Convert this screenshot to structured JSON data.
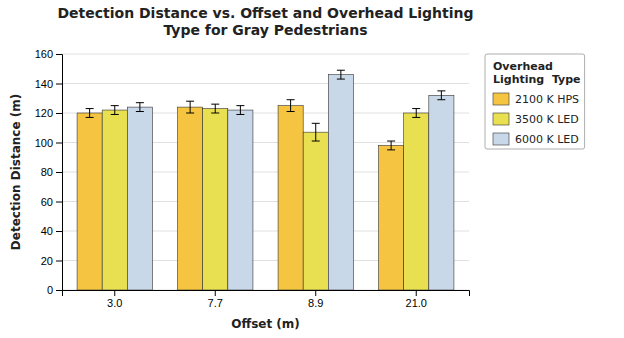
{
  "chart_data": {
    "type": "bar",
    "title": "Detection Distance vs. Offset and Overhead Lighting\nType for Gray Pedestrians",
    "x_label": "Offset (m)",
    "y_label": "Detection Distance (m)",
    "categories": [
      "3.0",
      "7.7",
      "8.9",
      "21.0"
    ],
    "series": [
      {
        "name": "2100 K HPS",
        "color": "#F5C542",
        "values": [
          120,
          124,
          125,
          98
        ],
        "errors": [
          3,
          4,
          4,
          3
        ]
      },
      {
        "name": "3500 K LED",
        "color": "#E8E050",
        "values": [
          122,
          123,
          107,
          120
        ],
        "errors": [
          3,
          3,
          6,
          3
        ]
      },
      {
        "name": "6000 K LED",
        "color": "#C8D8E8",
        "values": [
          124,
          122,
          146,
          132
        ],
        "errors": [
          3,
          3,
          3,
          3
        ]
      }
    ],
    "ylim": [
      0,
      160
    ],
    "yticks": [
      0,
      20,
      40,
      60,
      80,
      100,
      120,
      140,
      160
    ],
    "grid": true,
    "legend": "right",
    "legend_title": "Overhead\nLighting  Type"
  }
}
